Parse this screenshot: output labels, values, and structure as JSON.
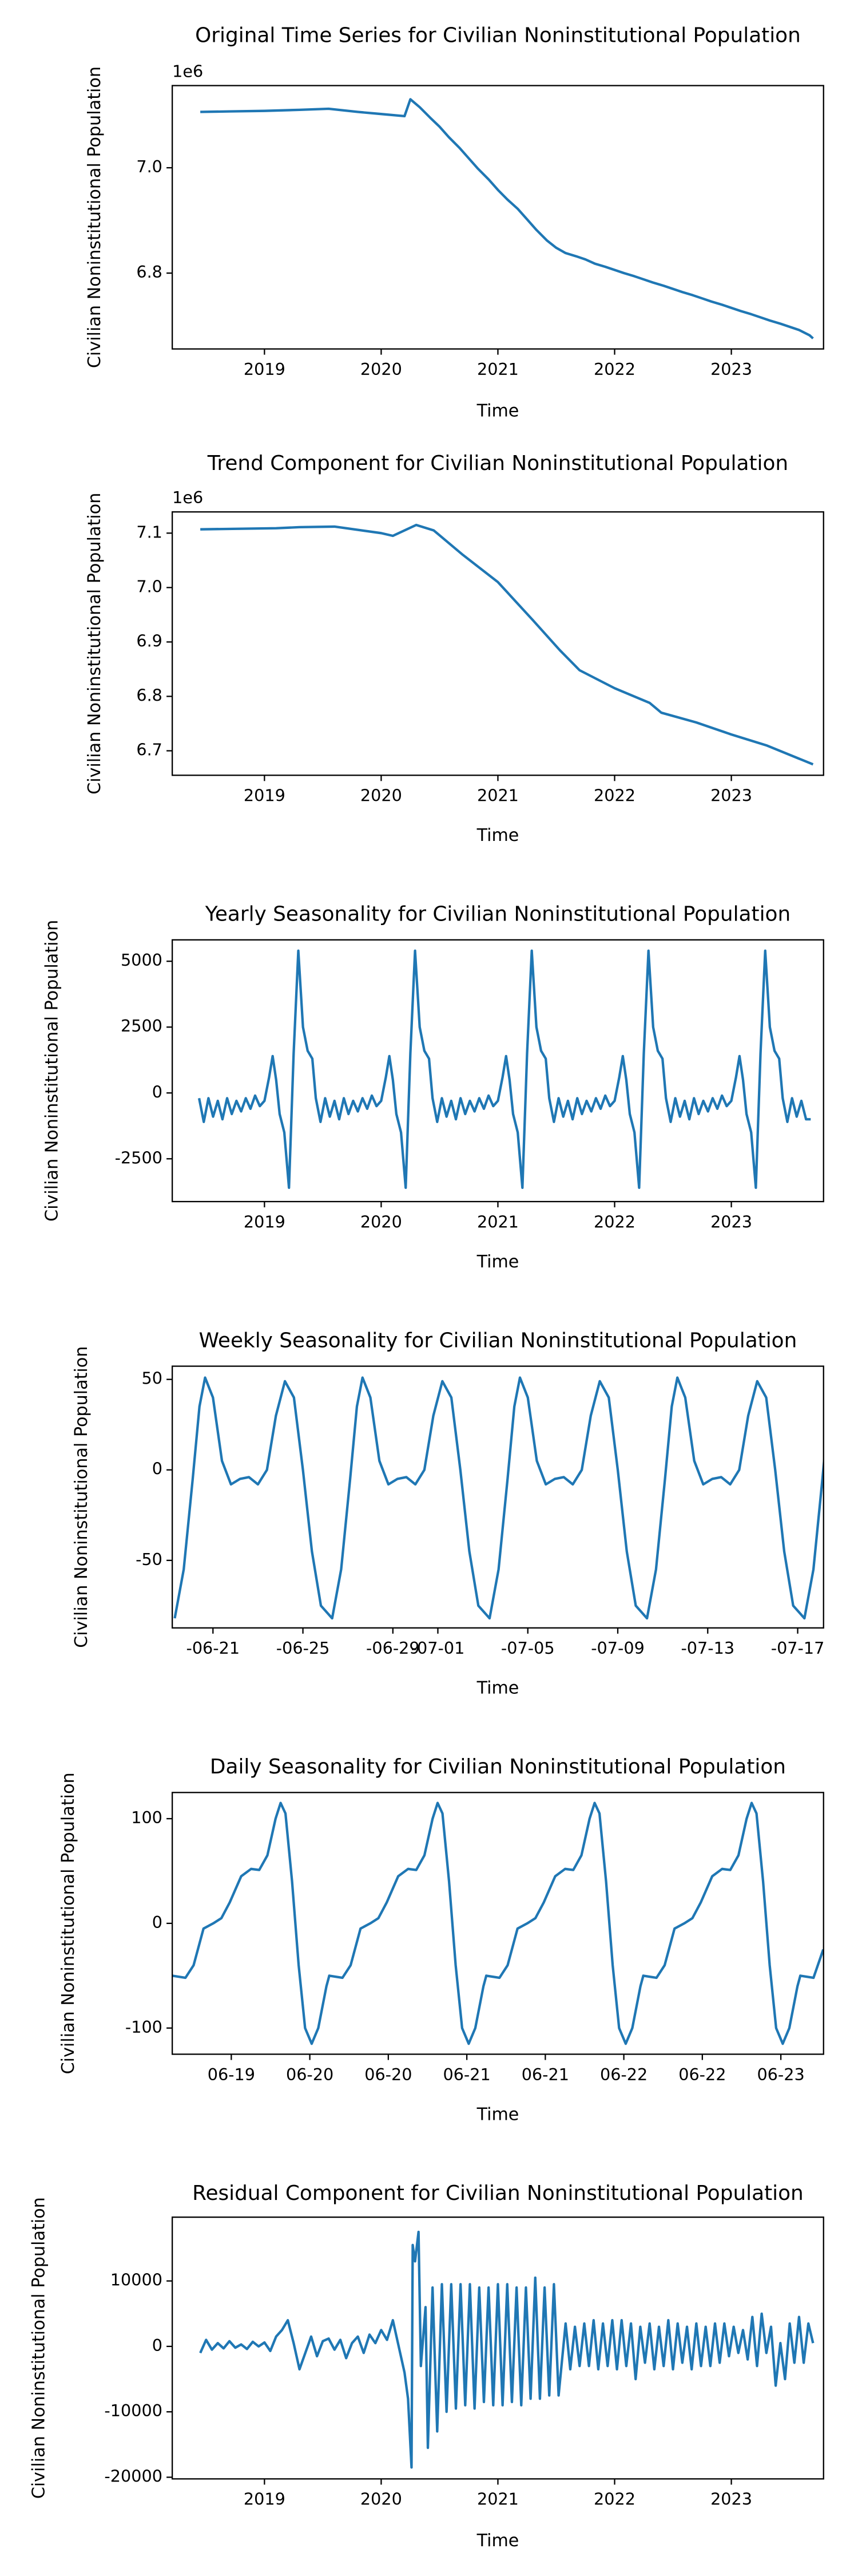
{
  "chart_data": [
    {
      "type": "line",
      "title": "Original Time Series for Civilian Noninstitutional Population",
      "xlabel": "Time",
      "ylabel": "Civilian Noninstitutional Population",
      "offset_text": "1e6",
      "color": "#1f77b4",
      "x": [
        2018.45,
        2018.7,
        2019.0,
        2019.3,
        2019.55,
        2019.8,
        2020.0,
        2020.2,
        2020.25,
        2020.33,
        2020.42,
        2020.5,
        2020.58,
        2020.67,
        2020.75,
        2020.83,
        2020.92,
        2021.0,
        2021.08,
        2021.17,
        2021.25,
        2021.33,
        2021.42,
        2021.5,
        2021.58,
        2021.67,
        2021.75,
        2021.83,
        2021.92,
        2022.0,
        2022.08,
        2022.17,
        2022.25,
        2022.33,
        2022.42,
        2022.5,
        2022.58,
        2022.67,
        2022.75,
        2022.83,
        2022.92,
        2023.0,
        2023.08,
        2023.17,
        2023.25,
        2023.33,
        2023.42,
        2023.5,
        2023.58,
        2023.67,
        2023.7
      ],
      "values": [
        7106000,
        7107000,
        7108000,
        7110000,
        7112000,
        7106000,
        7102000,
        7098000,
        7130000,
        7115000,
        7095000,
        7078000,
        7058000,
        7038000,
        7018000,
        6998000,
        6978000,
        6958000,
        6940000,
        6922000,
        6902000,
        6882000,
        6862000,
        6848000,
        6838000,
        6832000,
        6826000,
        6818000,
        6812000,
        6806000,
        6800000,
        6794000,
        6788000,
        6782000,
        6776000,
        6770000,
        6764000,
        6758000,
        6752000,
        6746000,
        6740000,
        6734000,
        6728000,
        6722000,
        6716000,
        6710000,
        6704000,
        6698000,
        6692000,
        6682000,
        6676000
      ],
      "xlim": [
        2018.21,
        2023.79
      ],
      "ylim": [
        6656000,
        7156000
      ],
      "xticks": [
        2019,
        2020,
        2021,
        2022,
        2023
      ],
      "yticks": [
        {
          "value": 6800000,
          "label": "6.8"
        },
        {
          "value": 7000000,
          "label": "7.0"
        }
      ]
    },
    {
      "type": "line",
      "title": "Trend Component for Civilian Noninstitutional Population",
      "xlabel": "Time",
      "ylabel": "Civilian Noninstitutional Population",
      "offset_text": "1e6",
      "color": "#1f77b4",
      "x": [
        2018.45,
        2019.1,
        2019.3,
        2019.6,
        2020.0,
        2020.1,
        2020.3,
        2020.45,
        2020.7,
        2021.0,
        2021.3,
        2021.53,
        2021.7,
        2022.0,
        2022.3,
        2022.4,
        2022.7,
        2023.0,
        2023.3,
        2023.7
      ],
      "values": [
        7107000,
        7109000,
        7111000,
        7112000,
        7100000,
        7095000,
        7115000,
        7105000,
        7060000,
        7010000,
        6940000,
        6885000,
        6848000,
        6815000,
        6788000,
        6770000,
        6752000,
        6730000,
        6710000,
        6675000
      ],
      "xlim": [
        2018.21,
        2023.79
      ],
      "ylim": [
        6655000,
        7139000
      ],
      "xticks": [
        2019,
        2020,
        2021,
        2022,
        2023
      ],
      "yticks": [
        {
          "value": 6700000,
          "label": "6.7"
        },
        {
          "value": 6800000,
          "label": "6.8"
        },
        {
          "value": 6900000,
          "label": "6.9"
        },
        {
          "value": 7000000,
          "label": "7.0"
        },
        {
          "value": 7100000,
          "label": "7.1"
        }
      ]
    },
    {
      "type": "line",
      "title": "Yearly Seasonality for Civilian Noninstitutional Population",
      "xlabel": "Time",
      "ylabel": "Civilian Noninstitutional Population",
      "color": "#1f77b4",
      "x": [
        2018.44,
        2018.48,
        2018.52,
        2018.56,
        2018.6,
        2018.64,
        2018.68,
        2018.72,
        2018.76,
        2018.8,
        2018.84,
        2018.88,
        2018.92,
        2018.96,
        2019.0,
        2019.04,
        2019.07,
        2019.1,
        2019.13,
        2019.17,
        2019.21,
        2019.25,
        2019.29,
        2019.33,
        2019.37,
        2019.41,
        2019.44,
        2019.48,
        2019.52,
        2019.56,
        2019.6,
        2019.64,
        2019.68,
        2019.72,
        2019.76,
        2019.8,
        2019.84,
        2019.88,
        2019.92,
        2019.96,
        2020.0,
        2020.04,
        2020.07,
        2020.1,
        2020.13,
        2020.17,
        2020.21,
        2020.25,
        2020.29,
        2020.33,
        2020.37,
        2020.41,
        2020.44,
        2020.48,
        2020.52,
        2020.56,
        2020.6,
        2020.64,
        2020.68,
        2020.72,
        2020.76,
        2020.8,
        2020.84,
        2020.88,
        2020.92,
        2020.96,
        2021.0,
        2021.04,
        2021.07,
        2021.1,
        2021.13,
        2021.17,
        2021.21,
        2021.25,
        2021.29,
        2021.33,
        2021.37,
        2021.41,
        2021.44,
        2021.48,
        2021.52,
        2021.56,
        2021.6,
        2021.64,
        2021.68,
        2021.72,
        2021.76,
        2021.8,
        2021.84,
        2021.88,
        2021.92,
        2021.96,
        2022.0,
        2022.04,
        2022.07,
        2022.1,
        2022.13,
        2022.17,
        2022.21,
        2022.25,
        2022.29,
        2022.33,
        2022.37,
        2022.41,
        2022.44,
        2022.48,
        2022.52,
        2022.56,
        2022.6,
        2022.64,
        2022.68,
        2022.72,
        2022.76,
        2022.8,
        2022.84,
        2022.88,
        2022.92,
        2022.96,
        2023.0,
        2023.04,
        2023.07,
        2023.1,
        2023.13,
        2023.17,
        2023.21,
        2023.25,
        2023.29,
        2023.33,
        2023.37,
        2023.41,
        2023.44,
        2023.48,
        2023.52,
        2023.56,
        2023.6,
        2023.64,
        2023.68
      ],
      "values": [
        -200,
        -1100,
        -200,
        -900,
        -300,
        -1000,
        -200,
        -800,
        -300,
        -700,
        -200,
        -600,
        -100,
        -500,
        -300,
        600,
        1400,
        500,
        -800,
        -1500,
        -3600,
        1500,
        5400,
        2500,
        1600,
        1300,
        -200,
        -1100,
        -200,
        -900,
        -300,
        -1000,
        -200,
        -800,
        -300,
        -700,
        -200,
        -600,
        -100,
        -500,
        -300,
        600,
        1400,
        500,
        -800,
        -1500,
        -3600,
        1500,
        5400,
        2500,
        1600,
        1300,
        -200,
        -1100,
        -200,
        -900,
        -300,
        -1000,
        -200,
        -800,
        -300,
        -700,
        -200,
        -600,
        -100,
        -500,
        -300,
        600,
        1400,
        500,
        -800,
        -1500,
        -3600,
        1500,
        5400,
        2500,
        1600,
        1300,
        -200,
        -1100,
        -200,
        -900,
        -300,
        -1000,
        -200,
        -800,
        -300,
        -700,
        -200,
        -600,
        -100,
        -500,
        -300,
        600,
        1400,
        500,
        -800,
        -1500,
        -3600,
        1500,
        5400,
        2500,
        1600,
        1300,
        -200,
        -1100,
        -200,
        -900,
        -300,
        -1000,
        -200,
        -800,
        -300,
        -700,
        -200,
        -600,
        -100,
        -500,
        -300,
        600,
        1400,
        500,
        -800,
        -1500,
        -3600,
        1500,
        5400,
        2500,
        1600,
        1300,
        -200,
        -1100,
        -200,
        -900,
        -300,
        -1000,
        -1000
      ],
      "xlim": [
        2018.21,
        2023.79
      ],
      "ylim": [
        -4125,
        5812
      ],
      "xticks": [
        2019,
        2020,
        2021,
        2022,
        2023
      ],
      "yticks": [
        -2500,
        0,
        2500,
        5000
      ]
    },
    {
      "type": "line",
      "title": "Weekly Seasonality for Civilian Noninstitutional Population",
      "xlabel": "Time",
      "ylabel": "Civilian Noninstitutional Population",
      "color": "#1f77b4",
      "x": [
        -1.7,
        -1.3,
        -0.9,
        -0.6,
        -0.35,
        0,
        0.4,
        0.8,
        1.2,
        1.6,
        2,
        2.4,
        2.8,
        3.2,
        3.6,
        4,
        4.4,
        4.8,
        5.3,
        5.7,
        6.1,
        6.4,
        6.65,
        7,
        7.4,
        7.8,
        8.2,
        8.6,
        9,
        9.4,
        9.8,
        10.2,
        10.6,
        11,
        11.4,
        11.8,
        12.3,
        12.7,
        13.1,
        13.4,
        13.65,
        14,
        14.4,
        14.8,
        15.2,
        15.6,
        16,
        16.4,
        16.8,
        17.2,
        17.6,
        18,
        18.4,
        18.8,
        19.3,
        19.7,
        20.1,
        20.4,
        20.65,
        21,
        21.4,
        21.8,
        22.2,
        22.6,
        23,
        23.4,
        23.8,
        24.2,
        24.6,
        25,
        25.4,
        25.8,
        26.3,
        26.7,
        27.1,
        27.4
      ],
      "values": [
        -82,
        -55,
        -5,
        35,
        51,
        40,
        5,
        -8,
        -5,
        -4,
        -8,
        0,
        30,
        49,
        40,
        0,
        -45,
        -75,
        -82,
        -55,
        -5,
        35,
        51,
        40,
        5,
        -8,
        -5,
        -4,
        -8,
        0,
        30,
        49,
        40,
        0,
        -45,
        -75,
        -82,
        -55,
        -5,
        35,
        51,
        40,
        5,
        -8,
        -5,
        -4,
        -8,
        0,
        30,
        49,
        40,
        0,
        -45,
        -75,
        -82,
        -55,
        -5,
        35,
        51,
        40,
        5,
        -8,
        -5,
        -4,
        -8,
        0,
        30,
        49,
        40,
        0,
        -45,
        -75,
        -82,
        -55,
        -5,
        35
      ],
      "xlim": [
        -1.81,
        27.15
      ],
      "ylim": [
        -87.3,
        57.3
      ],
      "xticks": [
        {
          "value": 0,
          "label": "-06-21"
        },
        {
          "value": 4,
          "label": "-06-25"
        },
        {
          "value": 8,
          "label": "-06-29"
        },
        {
          "value": 10,
          "label": "-07-01"
        },
        {
          "value": 14,
          "label": "-07-05"
        },
        {
          "value": 18,
          "label": "-07-09"
        },
        {
          "value": 22,
          "label": "-07-13"
        },
        {
          "value": 26,
          "label": "-07-17"
        }
      ],
      "yticks": [
        -50,
        0,
        50
      ]
    },
    {
      "type": "line",
      "title": "Daily Seasonality for Civilian Noninstitutional Population",
      "xlabel": "Time",
      "ylabel": "Civilian Noninstitutional Population",
      "color": "#1f77b4",
      "x": [
        -0.376,
        -0.292,
        -0.24,
        -0.177,
        -0.115,
        -0.063,
        -0.01,
        0.063,
        0.126,
        0.178,
        0.23,
        0.282,
        0.314,
        0.345,
        0.387,
        0.429,
        0.47,
        0.512,
        0.554,
        0.606,
        0.624,
        0.708,
        0.76,
        0.823,
        0.885,
        0.937,
        0.99,
        1.063,
        1.126,
        1.178,
        1.23,
        1.282,
        1.314,
        1.345,
        1.387,
        1.429,
        1.47,
        1.512,
        1.554,
        1.606,
        1.624,
        1.708,
        1.76,
        1.823,
        1.885,
        1.937,
        1.99,
        2.063,
        2.126,
        2.178,
        2.23,
        2.282,
        2.314,
        2.345,
        2.387,
        2.429,
        2.47,
        2.512,
        2.554,
        2.606,
        2.624,
        2.708,
        2.76,
        2.823,
        2.885,
        2.937,
        2.99,
        3.063,
        3.126,
        3.178,
        3.23,
        3.282,
        3.314,
        3.345,
        3.387,
        3.429,
        3.47,
        3.512,
        3.554,
        3.606,
        3.624,
        3.708,
        3.77
      ],
      "values": [
        -50,
        -52,
        -40,
        -5,
        0,
        5,
        20,
        45,
        52,
        51,
        65,
        100,
        115,
        105,
        40,
        -40,
        -100,
        -115,
        -100,
        -60,
        -50,
        -52,
        -40,
        -5,
        0,
        5,
        20,
        45,
        52,
        51,
        65,
        100,
        115,
        105,
        40,
        -40,
        -100,
        -115,
        -100,
        -60,
        -50,
        -52,
        -40,
        -5,
        0,
        5,
        20,
        45,
        52,
        51,
        65,
        100,
        115,
        105,
        40,
        -40,
        -100,
        -115,
        -100,
        -60,
        -50,
        -52,
        -40,
        -5,
        0,
        5,
        20,
        45,
        52,
        51,
        65,
        100,
        115,
        105,
        40,
        -40,
        -100,
        -115,
        -100,
        -60,
        -50,
        -52,
        -25
      ],
      "xlim": [
        -0.376,
        3.772
      ],
      "ylim": [
        -125,
        125
      ],
      "xticks": [
        {
          "value": 0,
          "label": "06-19"
        },
        {
          "value": 0.5,
          "label": "06-20"
        },
        {
          "value": 1,
          "label": "06-20"
        },
        {
          "value": 1.5,
          "label": "06-21"
        },
        {
          "value": 2,
          "label": "06-21"
        },
        {
          "value": 2.5,
          "label": "06-22"
        },
        {
          "value": 3,
          "label": "06-22"
        },
        {
          "value": 3.5,
          "label": "06-23"
        }
      ],
      "yticks": [
        -100,
        0,
        100
      ]
    },
    {
      "type": "line",
      "title": "Residual Component for Civilian Noninstitutional Population",
      "xlabel": "Time",
      "ylabel": "Civilian Noninstitutional Population",
      "color": "#1f77b4",
      "x": [
        2018.45,
        2018.5,
        2018.55,
        2018.6,
        2018.65,
        2018.7,
        2018.75,
        2018.8,
        2018.85,
        2018.9,
        2018.95,
        2019.0,
        2019.05,
        2019.1,
        2019.15,
        2019.2,
        2019.25,
        2019.3,
        2019.35,
        2019.4,
        2019.45,
        2019.5,
        2019.55,
        2019.6,
        2019.65,
        2019.7,
        2019.75,
        2019.8,
        2019.85,
        2019.9,
        2019.95,
        2020.0,
        2020.05,
        2020.1,
        2020.15,
        2020.2,
        2020.23,
        2020.26,
        2020.27,
        2020.29,
        2020.32,
        2020.34,
        2020.38,
        2020.4,
        2020.44,
        2020.48,
        2020.52,
        2020.56,
        2020.6,
        2020.64,
        2020.68,
        2020.72,
        2020.76,
        2020.8,
        2020.84,
        2020.88,
        2020.92,
        2020.96,
        2021.0,
        2021.04,
        2021.08,
        2021.12,
        2021.16,
        2021.2,
        2021.24,
        2021.28,
        2021.32,
        2021.36,
        2021.4,
        2021.44,
        2021.48,
        2021.52,
        2021.58,
        2021.62,
        2021.66,
        2021.7,
        2021.74,
        2021.78,
        2021.82,
        2021.86,
        2021.9,
        2021.94,
        2021.98,
        2022.02,
        2022.06,
        2022.1,
        2022.14,
        2022.18,
        2022.22,
        2022.26,
        2022.3,
        2022.34,
        2022.38,
        2022.42,
        2022.46,
        2022.5,
        2022.54,
        2022.58,
        2022.62,
        2022.66,
        2022.7,
        2022.74,
        2022.78,
        2022.82,
        2022.86,
        2022.9,
        2022.94,
        2022.98,
        2023.02,
        2023.06,
        2023.1,
        2023.14,
        2023.18,
        2023.22,
        2023.26,
        2023.3,
        2023.34,
        2023.38,
        2023.42,
        2023.46,
        2023.5,
        2023.54,
        2023.58,
        2023.62,
        2023.66,
        2023.7
      ],
      "values": [
        -1000,
        1000,
        -500,
        500,
        -300,
        800,
        -200,
        300,
        -400,
        700,
        0,
        600,
        -700,
        1500,
        2500,
        4000,
        500,
        -3500,
        -1000,
        1500,
        -1500,
        800,
        1200,
        -500,
        1000,
        -1800,
        500,
        1500,
        -1000,
        1800,
        500,
        2500,
        1000,
        4000,
        0,
        -4000,
        -8000,
        -18500,
        15500,
        13000,
        17500,
        -3000,
        6000,
        -15500,
        9000,
        -13000,
        9500,
        -10000,
        9500,
        -9500,
        9500,
        -9000,
        9500,
        -9500,
        9000,
        -8500,
        9000,
        -9000,
        9500,
        -9000,
        9500,
        -8500,
        9000,
        -9000,
        9000,
        -8000,
        10500,
        -8000,
        9000,
        -7500,
        9500,
        -7500,
        3500,
        -3500,
        3000,
        -3000,
        3500,
        -3000,
        4000,
        -3500,
        3500,
        -3000,
        4000,
        -3500,
        4000,
        -3000,
        3500,
        -5000,
        3000,
        -2500,
        3500,
        -3500,
        3000,
        -3000,
        4000,
        -3500,
        3500,
        -2500,
        3000,
        -3500,
        3500,
        -3000,
        3000,
        -3000,
        3500,
        -2500,
        3500,
        -1500,
        3000,
        -1000,
        2500,
        -2000,
        4500,
        -3000,
        5000,
        -1000,
        3000,
        -6000,
        500,
        -5000,
        3500,
        -2500,
        4500,
        -2500,
        3500,
        500
      ],
      "xlim": [
        2018.21,
        2023.79
      ],
      "ylim": [
        -20250,
        19750
      ],
      "xticks": [
        2019,
        2020,
        2021,
        2022,
        2023
      ],
      "yticks": [
        -20000,
        -10000,
        0,
        10000
      ]
    }
  ]
}
